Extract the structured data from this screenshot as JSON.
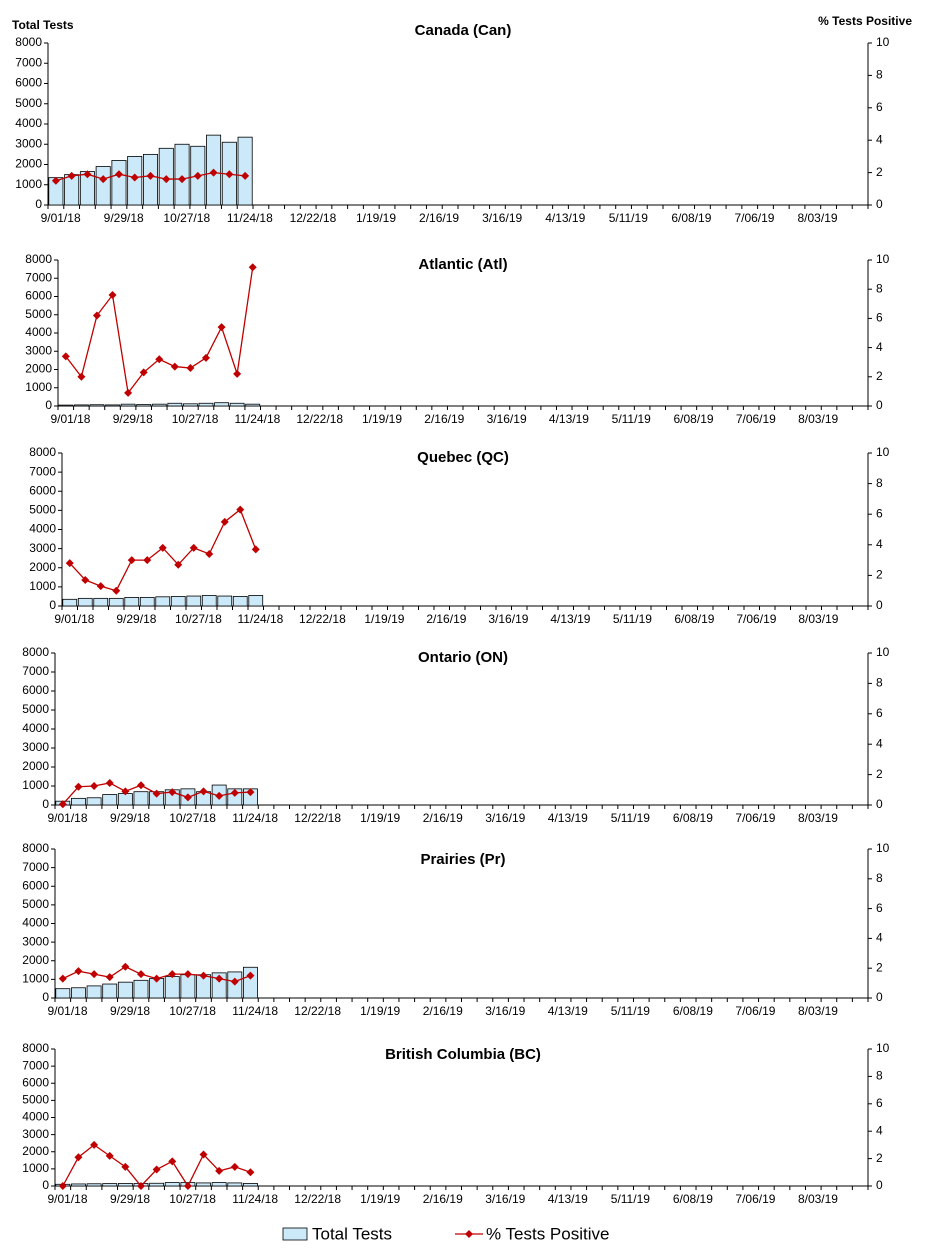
{
  "chart_data": [
    {
      "type": "bar",
      "title": "Canada (Can)",
      "y_label": "Total Tests",
      "y2_label": "% Tests Positive",
      "categories": [
        "9/01/18",
        null,
        null,
        null,
        "9/29/18",
        null,
        null,
        null,
        "10/27/18",
        null,
        null,
        null,
        "11/24/18",
        null,
        null,
        null,
        "12/22/18",
        null,
        null,
        null,
        "1/19/19",
        null,
        null,
        null,
        "2/16/19",
        null,
        null,
        null,
        "3/16/19",
        null,
        null,
        null,
        "4/13/19",
        null,
        null,
        null,
        "5/11/19",
        null,
        null,
        null,
        "6/08/19",
        null,
        null,
        null,
        "7/06/19",
        null,
        null,
        null,
        "8/03/19",
        null,
        null,
        null
      ],
      "series": [
        {
          "color": "#cce9f9",
          "values": [
            1350,
            1500,
            1650,
            1900,
            2200,
            2400,
            2500,
            2800,
            3000,
            2900,
            3450,
            3100,
            3350,
            null,
            null,
            null,
            null,
            null,
            null,
            null,
            null,
            null,
            null,
            null,
            null,
            null,
            null,
            null,
            null,
            null,
            null,
            null,
            null,
            null,
            null,
            null,
            null,
            null,
            null,
            null,
            null,
            null,
            null,
            null,
            null,
            null,
            null,
            null,
            null,
            null,
            null,
            null
          ]
        },
        {
          "color": "#c00000",
          "axis": "y2",
          "values": [
            1.5,
            1.8,
            1.9,
            1.6,
            1.9,
            1.7,
            1.8,
            1.6,
            1.6,
            1.8,
            2.0,
            1.9,
            1.8,
            null,
            null,
            null,
            null,
            null,
            null,
            null,
            null,
            null,
            null,
            null,
            null,
            null,
            null,
            null,
            null,
            null,
            null,
            null,
            null,
            null,
            null,
            null,
            null,
            null,
            null,
            null,
            null,
            null,
            null,
            null,
            null,
            null,
            null,
            null,
            null,
            null,
            null,
            null
          ]
        }
      ],
      "ylim": [
        0,
        8000
      ],
      "yticks": [
        0,
        1000,
        2000,
        3000,
        4000,
        5000,
        6000,
        7000,
        8000
      ],
      "y2lim": [
        0,
        10
      ],
      "y2ticks": [
        0,
        2,
        4,
        6,
        8,
        10
      ]
    },
    {
      "type": "bar",
      "title": "Atlantic (Atl)",
      "categories": [
        "9/01/18",
        null,
        null,
        null,
        "9/29/18",
        null,
        null,
        null,
        "10/27/18",
        null,
        null,
        null,
        "11/24/18",
        null,
        null,
        null,
        "12/22/18",
        null,
        null,
        null,
        "1/19/19",
        null,
        null,
        null,
        "2/16/19",
        null,
        null,
        null,
        "3/16/19",
        null,
        null,
        null,
        "4/13/19",
        null,
        null,
        null,
        "5/11/19",
        null,
        null,
        null,
        "6/08/19",
        null,
        null,
        null,
        "7/06/19",
        null,
        null,
        null,
        "8/03/19",
        null,
        null,
        null
      ],
      "series": [
        {
          "color": "#cce9f9",
          "values": [
            50,
            60,
            70,
            60,
            100,
            80,
            100,
            150,
            120,
            150,
            180,
            150,
            100,
            null,
            null,
            null,
            null,
            null,
            null,
            null,
            null,
            null,
            null,
            null,
            null,
            null,
            null,
            null,
            null,
            null,
            null,
            null,
            null,
            null,
            null,
            null,
            null,
            null,
            null,
            null,
            null,
            null,
            null,
            null,
            null,
            null,
            null,
            null,
            null,
            null,
            null,
            null
          ]
        },
        {
          "color": "#c00000",
          "axis": "y2",
          "values": [
            3.4,
            2.0,
            6.2,
            7.6,
            0.9,
            2.3,
            3.2,
            2.7,
            2.6,
            3.3,
            5.4,
            2.2,
            9.5,
            null,
            null,
            null,
            null,
            null,
            null,
            null,
            null,
            null,
            null,
            null,
            null,
            null,
            null,
            null,
            null,
            null,
            null,
            null,
            null,
            null,
            null,
            null,
            null,
            null,
            null,
            null,
            null,
            null,
            null,
            null,
            null,
            null,
            null,
            null,
            null,
            null,
            null,
            null
          ]
        }
      ],
      "ylim": [
        0,
        8000
      ],
      "yticks": [
        0,
        1000,
        2000,
        3000,
        4000,
        5000,
        6000,
        7000,
        8000
      ],
      "y2lim": [
        0,
        10
      ],
      "y2ticks": [
        0,
        2,
        4,
        6,
        8,
        10
      ]
    },
    {
      "type": "bar",
      "title": "Quebec (QC)",
      "categories": [
        "9/01/18",
        null,
        null,
        null,
        "9/29/18",
        null,
        null,
        null,
        "10/27/18",
        null,
        null,
        null,
        "11/24/18",
        null,
        null,
        null,
        "12/22/18",
        null,
        null,
        null,
        "1/19/19",
        null,
        null,
        null,
        "2/16/19",
        null,
        null,
        null,
        "3/16/19",
        null,
        null,
        null,
        "4/13/19",
        null,
        null,
        null,
        "5/11/19",
        null,
        null,
        null,
        "6/08/19",
        null,
        null,
        null,
        "7/06/19",
        null,
        null,
        null,
        "8/03/19",
        null,
        null,
        null
      ],
      "series": [
        {
          "color": "#cce9f9",
          "values": [
            350,
            400,
            400,
            400,
            450,
            450,
            480,
            500,
            520,
            550,
            520,
            500,
            550,
            null,
            null,
            null,
            null,
            null,
            null,
            null,
            null,
            null,
            null,
            null,
            null,
            null,
            null,
            null,
            null,
            null,
            null,
            null,
            null,
            null,
            null,
            null,
            null,
            null,
            null,
            null,
            null,
            null,
            null,
            null,
            null,
            null,
            null,
            null,
            null,
            null,
            null,
            null
          ]
        },
        {
          "color": "#c00000",
          "axis": "y2",
          "values": [
            2.8,
            1.7,
            1.3,
            1.0,
            3.0,
            3.0,
            3.8,
            2.7,
            3.8,
            3.4,
            5.5,
            6.3,
            3.7,
            null,
            null,
            null,
            null,
            null,
            null,
            null,
            null,
            null,
            null,
            null,
            null,
            null,
            null,
            null,
            null,
            null,
            null,
            null,
            null,
            null,
            null,
            null,
            null,
            null,
            null,
            null,
            null,
            null,
            null,
            null,
            null,
            null,
            null,
            null,
            null,
            null,
            null,
            null
          ]
        }
      ],
      "ylim": [
        0,
        8000
      ],
      "yticks": [
        0,
        1000,
        2000,
        3000,
        4000,
        5000,
        6000,
        7000,
        8000
      ],
      "y2lim": [
        0,
        10
      ],
      "y2ticks": [
        0,
        2,
        4,
        6,
        8,
        10
      ]
    },
    {
      "type": "bar",
      "title": "Ontario (ON)",
      "categories": [
        "9/01/18",
        null,
        null,
        null,
        "9/29/18",
        null,
        null,
        null,
        "10/27/18",
        null,
        null,
        null,
        "11/24/18",
        null,
        null,
        null,
        "12/22/18",
        null,
        null,
        null,
        "1/19/19",
        null,
        null,
        null,
        "2/16/19",
        null,
        null,
        null,
        "3/16/19",
        null,
        null,
        null,
        "4/13/19",
        null,
        null,
        null,
        "5/11/19",
        null,
        null,
        null,
        "6/08/19",
        null,
        null,
        null,
        "7/06/19",
        null,
        null,
        null,
        "8/03/19",
        null,
        null,
        null
      ],
      "series": [
        {
          "color": "#cce9f9",
          "values": [
            200,
            350,
            380,
            550,
            600,
            700,
            700,
            800,
            850,
            700,
            1050,
            850,
            850,
            null,
            null,
            null,
            null,
            null,
            null,
            null,
            null,
            null,
            null,
            null,
            null,
            null,
            null,
            null,
            null,
            null,
            null,
            null,
            null,
            null,
            null,
            null,
            null,
            null,
            null,
            null,
            null,
            null,
            null,
            null,
            null,
            null,
            null,
            null,
            null,
            null,
            null,
            null
          ]
        },
        {
          "color": "#c00000",
          "axis": "y2",
          "values": [
            0.05,
            1.2,
            1.25,
            1.45,
            0.9,
            1.3,
            0.75,
            0.85,
            0.5,
            0.9,
            0.6,
            0.8,
            0.85,
            null,
            null,
            null,
            null,
            null,
            null,
            null,
            null,
            null,
            null,
            null,
            null,
            null,
            null,
            null,
            null,
            null,
            null,
            null,
            null,
            null,
            null,
            null,
            null,
            null,
            null,
            null,
            null,
            null,
            null,
            null,
            null,
            null,
            null,
            null,
            null,
            null,
            null,
            null
          ]
        }
      ],
      "ylim": [
        0,
        8000
      ],
      "yticks": [
        0,
        1000,
        2000,
        3000,
        4000,
        5000,
        6000,
        7000,
        8000
      ],
      "y2lim": [
        0,
        10
      ],
      "y2ticks": [
        0,
        2,
        4,
        6,
        8,
        10
      ]
    },
    {
      "type": "bar",
      "title": "Prairies (Pr)",
      "categories": [
        "9/01/18",
        null,
        null,
        null,
        "9/29/18",
        null,
        null,
        null,
        "10/27/18",
        null,
        null,
        null,
        "11/24/18",
        null,
        null,
        null,
        "12/22/18",
        null,
        null,
        null,
        "1/19/19",
        null,
        null,
        null,
        "2/16/19",
        null,
        null,
        null,
        "3/16/19",
        null,
        null,
        null,
        "4/13/19",
        null,
        null,
        null,
        "5/11/19",
        null,
        null,
        null,
        "6/08/19",
        null,
        null,
        null,
        "7/06/19",
        null,
        null,
        null,
        "8/03/19",
        null,
        null,
        null
      ],
      "series": [
        {
          "color": "#cce9f9",
          "values": [
            500,
            550,
            650,
            750,
            850,
            950,
            1050,
            1150,
            1250,
            1250,
            1350,
            1400,
            1650,
            null,
            null,
            null,
            null,
            null,
            null,
            null,
            null,
            null,
            null,
            null,
            null,
            null,
            null,
            null,
            null,
            null,
            null,
            null,
            null,
            null,
            null,
            null,
            null,
            null,
            null,
            null,
            null,
            null,
            null,
            null,
            null,
            null,
            null,
            null,
            null,
            null,
            null,
            null
          ]
        },
        {
          "color": "#c00000",
          "axis": "y2",
          "values": [
            1.3,
            1.8,
            1.6,
            1.4,
            2.1,
            1.6,
            1.3,
            1.6,
            1.6,
            1.5,
            1.3,
            1.1,
            1.5,
            null,
            null,
            null,
            null,
            null,
            null,
            null,
            null,
            null,
            null,
            null,
            null,
            null,
            null,
            null,
            null,
            null,
            null,
            null,
            null,
            null,
            null,
            null,
            null,
            null,
            null,
            null,
            null,
            null,
            null,
            null,
            null,
            null,
            null,
            null,
            null,
            null,
            null,
            null
          ]
        }
      ],
      "ylim": [
        0,
        8000
      ],
      "yticks": [
        0,
        1000,
        2000,
        3000,
        4000,
        5000,
        6000,
        7000,
        8000
      ],
      "y2lim": [
        0,
        10
      ],
      "y2ticks": [
        0,
        2,
        4,
        6,
        8,
        10
      ]
    },
    {
      "type": "bar",
      "title": "British Columbia (BC)",
      "categories": [
        "9/01/18",
        null,
        null,
        null,
        "9/29/18",
        null,
        null,
        null,
        "10/27/18",
        null,
        null,
        null,
        "11/24/18",
        null,
        null,
        null,
        "12/22/18",
        null,
        null,
        null,
        "1/19/19",
        null,
        null,
        null,
        "2/16/19",
        null,
        null,
        null,
        "3/16/19",
        null,
        null,
        null,
        "4/13/19",
        null,
        null,
        null,
        "5/11/19",
        null,
        null,
        null,
        "6/08/19",
        null,
        null,
        null,
        "7/06/19",
        null,
        null,
        null,
        "8/03/19",
        null,
        null,
        null
      ],
      "series": [
        {
          "name": "Total Tests",
          "color": "#cce9f9",
          "values": [
            100,
            120,
            130,
            140,
            150,
            150,
            160,
            200,
            200,
            180,
            200,
            180,
            150,
            null,
            null,
            null,
            null,
            null,
            null,
            null,
            null,
            null,
            null,
            null,
            null,
            null,
            null,
            null,
            null,
            null,
            null,
            null,
            null,
            null,
            null,
            null,
            null,
            null,
            null,
            null,
            null,
            null,
            null,
            null,
            null,
            null,
            null,
            null,
            null,
            null,
            null,
            null
          ]
        },
        {
          "name": "% Tests Positive",
          "color": "#c00000",
          "axis": "y2",
          "values": [
            0,
            2.1,
            3.0,
            2.2,
            1.4,
            0,
            1.2,
            1.8,
            0,
            2.3,
            1.1,
            1.4,
            1.0,
            null,
            null,
            null,
            null,
            null,
            null,
            null,
            null,
            null,
            null,
            null,
            null,
            null,
            null,
            null,
            null,
            null,
            null,
            null,
            null,
            null,
            null,
            null,
            null,
            null,
            null,
            null,
            null,
            null,
            null,
            null,
            null,
            null,
            null,
            null,
            null,
            null,
            null,
            null
          ]
        }
      ],
      "ylim": [
        0,
        8000
      ],
      "yticks": [
        0,
        1000,
        2000,
        3000,
        4000,
        5000,
        6000,
        7000,
        8000
      ],
      "y2lim": [
        0,
        10
      ],
      "y2ticks": [
        0,
        2,
        4,
        6,
        8,
        10
      ]
    }
  ]
}
